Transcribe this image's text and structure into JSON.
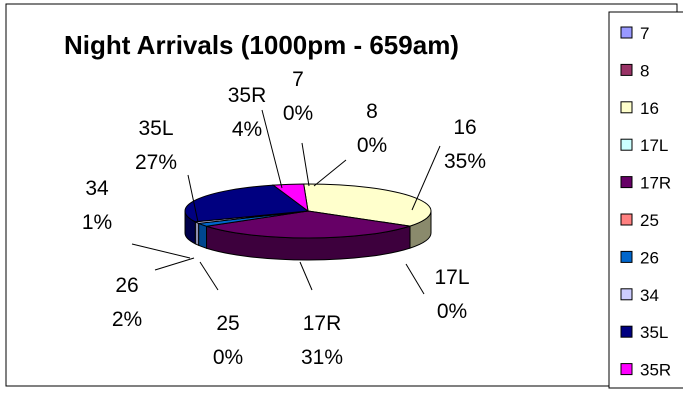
{
  "chart_data": {
    "type": "pie",
    "title": "Night Arrivals (1000pm - 659am)",
    "legend_position": "right",
    "three_d": true,
    "slices": [
      {
        "label": "7",
        "value": 0,
        "pct": "0%",
        "color": "#9999ff",
        "side": "#7777cc"
      },
      {
        "label": "8",
        "value": 0,
        "pct": "0%",
        "color": "#993366",
        "side": "#6b2447"
      },
      {
        "label": "16",
        "value": 35,
        "pct": "35%",
        "color": "#ffffcc",
        "side": "#8a8a6c"
      },
      {
        "label": "17L",
        "value": 0,
        "pct": "0%",
        "color": "#ccffff",
        "side": "#88aaaa"
      },
      {
        "label": "17R",
        "value": 31,
        "pct": "31%",
        "color": "#660066",
        "side": "#3d003d"
      },
      {
        "label": "25",
        "value": 0,
        "pct": "0%",
        "color": "#ff8080",
        "side": "#b35a5a"
      },
      {
        "label": "26",
        "value": 2,
        "pct": "2%",
        "color": "#0066cc",
        "side": "#00478f"
      },
      {
        "label": "34",
        "value": 1,
        "pct": "1%",
        "color": "#ccccff",
        "side": "#9090b3"
      },
      {
        "label": "35L",
        "value": 27,
        "pct": "27%",
        "color": "#000080",
        "side": "#00004a"
      },
      {
        "label": "35R",
        "value": 4,
        "pct": "4%",
        "color": "#ff00ff",
        "side": "#b300b3"
      }
    ]
  }
}
